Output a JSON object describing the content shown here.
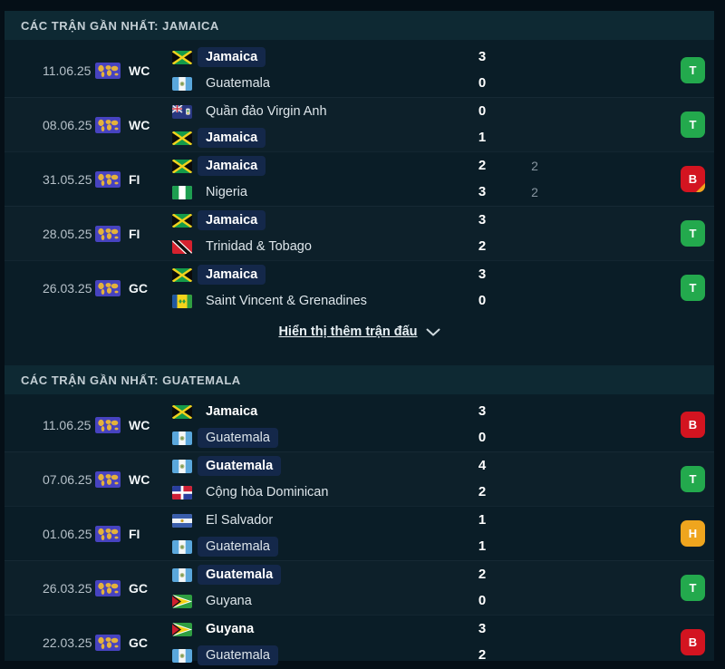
{
  "colors": {
    "win_badge": "#23a94d",
    "loss_badge": "#d31420",
    "draw_badge": "#efa51e",
    "focus_pill": "#14284a",
    "panel_bg": "#0a1d27",
    "header_bg": "#0e2933"
  },
  "sections": [
    {
      "title": "CÁC TRẬN GẦN NHẤT: JAMAICA",
      "show_more_label": "Hiển thị thêm trận đấu",
      "matches": [
        {
          "date": "11.06.25",
          "comp": "WC",
          "home": {
            "name": "Jamaica",
            "flag": "jm",
            "bold": true,
            "pill": true
          },
          "away": {
            "name": "Guatemala",
            "flag": "gt",
            "bold": false,
            "pill": false
          },
          "home_score": "3",
          "away_score": "0",
          "home_score2": "",
          "away_score2": "",
          "result": "T",
          "result_corner": false
        },
        {
          "date": "08.06.25",
          "comp": "WC",
          "home": {
            "name": "Quần đảo Virgin Anh",
            "flag": "vg",
            "bold": false,
            "pill": false
          },
          "away": {
            "name": "Jamaica",
            "flag": "jm",
            "bold": true,
            "pill": true
          },
          "home_score": "0",
          "away_score": "1",
          "home_score2": "",
          "away_score2": "",
          "result": "T",
          "result_corner": false
        },
        {
          "date": "31.05.25",
          "comp": "FI",
          "home": {
            "name": "Jamaica",
            "flag": "jm",
            "bold": true,
            "pill": true
          },
          "away": {
            "name": "Nigeria",
            "flag": "ng",
            "bold": false,
            "pill": false
          },
          "home_score": "2",
          "away_score": "3",
          "home_score2": "2",
          "away_score2": "2",
          "result": "B",
          "result_corner": true
        },
        {
          "date": "28.05.25",
          "comp": "FI",
          "home": {
            "name": "Jamaica",
            "flag": "jm",
            "bold": true,
            "pill": true
          },
          "away": {
            "name": "Trinidad & Tobago",
            "flag": "tt",
            "bold": false,
            "pill": false
          },
          "home_score": "3",
          "away_score": "2",
          "home_score2": "",
          "away_score2": "",
          "result": "T",
          "result_corner": false
        },
        {
          "date": "26.03.25",
          "comp": "GC",
          "home": {
            "name": "Jamaica",
            "flag": "jm",
            "bold": true,
            "pill": true
          },
          "away": {
            "name": "Saint Vincent & Grenadines",
            "flag": "vc",
            "bold": false,
            "pill": false
          },
          "home_score": "3",
          "away_score": "0",
          "home_score2": "",
          "away_score2": "",
          "result": "T",
          "result_corner": false
        }
      ]
    },
    {
      "title": "CÁC TRẬN GẦN NHẤT: GUATEMALA",
      "show_more_label": "",
      "matches": [
        {
          "date": "11.06.25",
          "comp": "WC",
          "home": {
            "name": "Jamaica",
            "flag": "jm",
            "bold": true,
            "pill": false
          },
          "away": {
            "name": "Guatemala",
            "flag": "gt",
            "bold": false,
            "pill": true
          },
          "home_score": "3",
          "away_score": "0",
          "home_score2": "",
          "away_score2": "",
          "result": "B",
          "result_corner": false
        },
        {
          "date": "07.06.25",
          "comp": "WC",
          "home": {
            "name": "Guatemala",
            "flag": "gt",
            "bold": true,
            "pill": true
          },
          "away": {
            "name": "Cộng hòa Dominican",
            "flag": "do",
            "bold": false,
            "pill": false
          },
          "home_score": "4",
          "away_score": "2",
          "home_score2": "",
          "away_score2": "",
          "result": "T",
          "result_corner": false
        },
        {
          "date": "01.06.25",
          "comp": "FI",
          "home": {
            "name": "El Salvador",
            "flag": "sv",
            "bold": false,
            "pill": false
          },
          "away": {
            "name": "Guatemala",
            "flag": "gt",
            "bold": false,
            "pill": true
          },
          "home_score": "1",
          "away_score": "1",
          "home_score2": "",
          "away_score2": "",
          "result": "H",
          "result_corner": false
        },
        {
          "date": "26.03.25",
          "comp": "GC",
          "home": {
            "name": "Guatemala",
            "flag": "gt",
            "bold": true,
            "pill": true
          },
          "away": {
            "name": "Guyana",
            "flag": "gy",
            "bold": false,
            "pill": false
          },
          "home_score": "2",
          "away_score": "0",
          "home_score2": "",
          "away_score2": "",
          "result": "T",
          "result_corner": false
        },
        {
          "date": "22.03.25",
          "comp": "GC",
          "home": {
            "name": "Guyana",
            "flag": "gy",
            "bold": true,
            "pill": false
          },
          "away": {
            "name": "Guatemala",
            "flag": "gt",
            "bold": false,
            "pill": true
          },
          "home_score": "3",
          "away_score": "2",
          "home_score2": "",
          "away_score2": "",
          "result": "B",
          "result_corner": false
        }
      ]
    }
  ]
}
